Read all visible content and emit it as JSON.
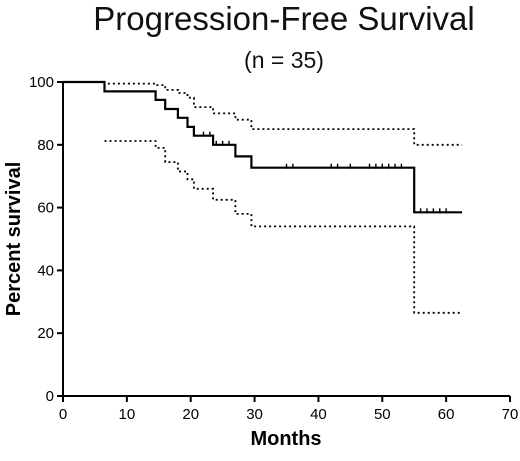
{
  "chart_data": {
    "type": "line",
    "title": "Progression-Free Survival",
    "subtitle": "(n = 35)",
    "xlabel": "Months",
    "ylabel": "Percent survival",
    "xlim": [
      0,
      70
    ],
    "ylim": [
      0,
      100
    ],
    "x_ticks": [
      "0",
      "10",
      "20",
      "30",
      "40",
      "50",
      "60",
      "70"
    ],
    "y_ticks": [
      "0",
      "20",
      "40",
      "60",
      "80",
      "100"
    ],
    "grid": false,
    "legend": "none",
    "series": [
      {
        "role": "estimate",
        "style": "solid",
        "color": "#000000",
        "points": [
          [
            0,
            100
          ],
          [
            6.5,
            100
          ],
          [
            6.5,
            97
          ],
          [
            14.5,
            97
          ],
          [
            14.5,
            94.3
          ],
          [
            16,
            94.3
          ],
          [
            16,
            91.4
          ],
          [
            18,
            91.4
          ],
          [
            18,
            88.6
          ],
          [
            19.5,
            88.6
          ],
          [
            19.5,
            85.7
          ],
          [
            20.5,
            85.7
          ],
          [
            20.5,
            82.9
          ],
          [
            23.5,
            82.9
          ],
          [
            23.5,
            80
          ],
          [
            27,
            80
          ],
          [
            27,
            76.3
          ],
          [
            29.5,
            76.3
          ],
          [
            29.5,
            72.7
          ],
          [
            55,
            72.7
          ],
          [
            55,
            58.5
          ],
          [
            62.5,
            58.5
          ]
        ],
        "censor_x": [
          22,
          23,
          24,
          25,
          26,
          35,
          36,
          42,
          43,
          45,
          48,
          49,
          50,
          51,
          52,
          53,
          56,
          57,
          58,
          59,
          60
        ]
      },
      {
        "role": "upper-ci",
        "style": "dotted",
        "color": "#000000",
        "points": [
          [
            6.5,
            100
          ],
          [
            6.5,
            99.5
          ],
          [
            14.5,
            99.5
          ],
          [
            14.5,
            99
          ],
          [
            16,
            99
          ],
          [
            16,
            97.5
          ],
          [
            18,
            97.5
          ],
          [
            18,
            96.5
          ],
          [
            19.5,
            96.5
          ],
          [
            19.5,
            95
          ],
          [
            20.5,
            95
          ],
          [
            20.5,
            92
          ],
          [
            23.5,
            92
          ],
          [
            23.5,
            90
          ],
          [
            27,
            90
          ],
          [
            27,
            88
          ],
          [
            29.5,
            88
          ],
          [
            29.5,
            85
          ],
          [
            55,
            85
          ],
          [
            55,
            80
          ],
          [
            62.5,
            80
          ]
        ]
      },
      {
        "role": "lower-ci",
        "style": "dotted",
        "color": "#000000",
        "points": [
          [
            6.5,
            81.2
          ],
          [
            14.5,
            81.2
          ],
          [
            14.5,
            79
          ],
          [
            16,
            79
          ],
          [
            16,
            74.5
          ],
          [
            18,
            74.5
          ],
          [
            18,
            71.5
          ],
          [
            19.5,
            71.5
          ],
          [
            19.5,
            69
          ],
          [
            20.5,
            69
          ],
          [
            20.5,
            66
          ],
          [
            23.5,
            66
          ],
          [
            23.5,
            62.5
          ],
          [
            27,
            62.5
          ],
          [
            27,
            58
          ],
          [
            29.5,
            58
          ],
          [
            29.5,
            54
          ],
          [
            55,
            54
          ],
          [
            55,
            26.5
          ],
          [
            62.5,
            26.5
          ]
        ]
      }
    ]
  }
}
